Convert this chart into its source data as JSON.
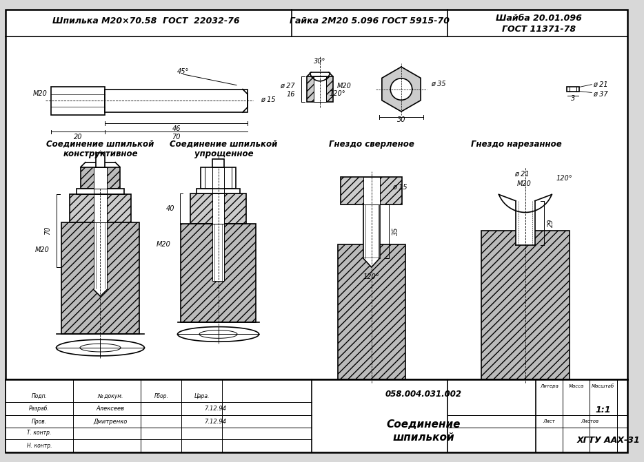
{
  "bg_color": "#d8d8d8",
  "border_color": "#1a1a1a",
  "title1": "Шпилька М20×70.58  ГОСТ  22032-76",
  "title2": "Гайка 2М20 5.096 ГОСТ 5915-70",
  "title3": "Шайба 20.01.096",
  "title4": "ГОСТ 11371-78",
  "label_konstrukt": "Соединение шпилькой",
  "label_konstrukt2": "конструктивное",
  "label_upr": "Соединение шпилькой",
  "label_upr2": "упрощенное",
  "label_gnezdo_sv": "Гнездо сверленое",
  "label_gnezdo_nar": "Гнездо нарезанное",
  "doc_num": "058.004.031.002",
  "title_main": "Соединение",
  "title_main2": "шпилькой",
  "scale": "1:1",
  "org": "ХГТУ ААХ-31",
  "line_color": "#000000",
  "paper_color": "#ffffff"
}
